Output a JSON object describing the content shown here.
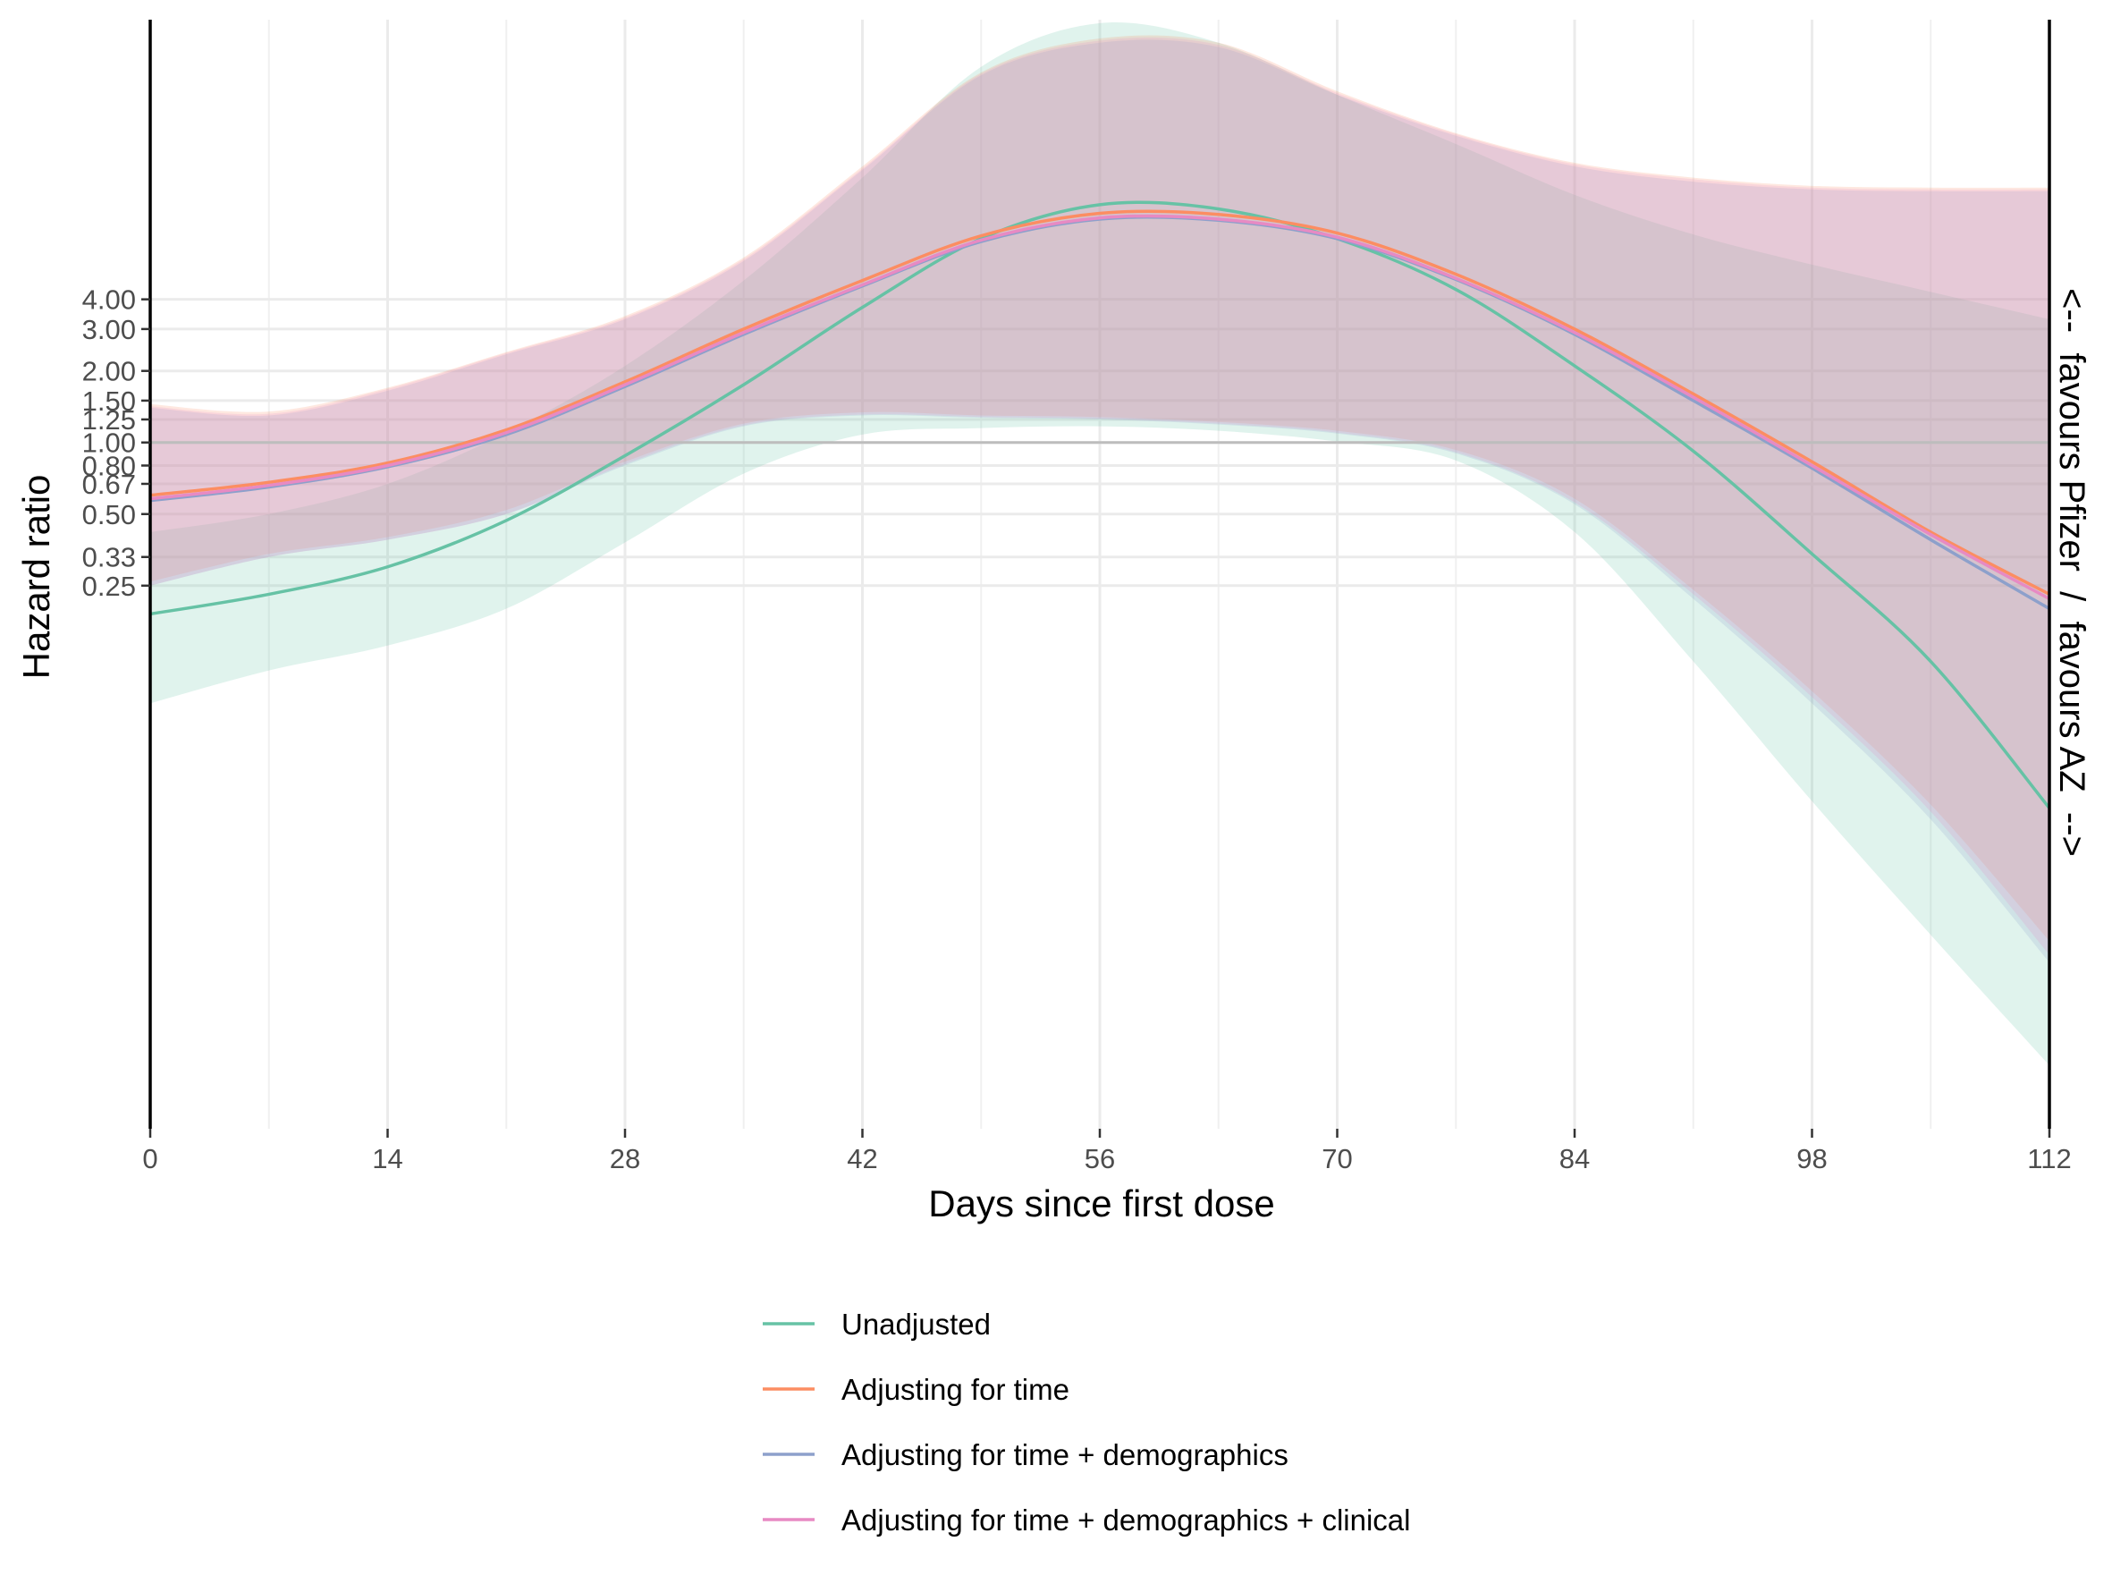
{
  "chart_data": {
    "type": "line",
    "xlabel": "Days since first dose",
    "ylabel": "Hazard ratio",
    "side_label": "<--  favours Pfizer  /  favours AZ  -->",
    "x_ticks": [
      0,
      14,
      28,
      42,
      56,
      70,
      84,
      98,
      112
    ],
    "y_ticks": [
      "0.25",
      "0.33",
      "0.50",
      "0.67",
      "0.80",
      "1.00",
      "1.25",
      "1.50",
      "2.00",
      "3.00",
      "4.00"
    ],
    "y_tick_values": [
      0.25,
      0.33,
      0.5,
      0.67,
      0.8,
      1.0,
      1.25,
      1.5,
      2.0,
      3.0,
      4.0
    ],
    "y_scale": "log",
    "xlim": [
      0,
      112
    ],
    "ylim": [
      0.0013,
      60
    ],
    "reference_line": 1.0,
    "grid": true,
    "legend_position": "bottom",
    "series": [
      {
        "name": "Unadjusted",
        "color": "#66c2a5",
        "x": [
          0,
          7,
          14,
          21,
          28,
          35,
          42,
          49,
          56,
          63,
          70,
          77,
          84,
          91,
          98,
          105,
          112
        ],
        "y": [
          0.19,
          0.23,
          0.3,
          0.47,
          0.88,
          1.75,
          3.7,
          7.2,
          10.0,
          9.6,
          7.2,
          4.4,
          2.1,
          0.92,
          0.34,
          0.12,
          0.029
        ],
        "lower": [
          0.08,
          0.11,
          0.14,
          0.2,
          0.38,
          0.74,
          1.08,
          1.15,
          1.17,
          1.12,
          1.01,
          0.84,
          0.42,
          0.12,
          0.031,
          0.0085,
          0.0024
        ],
        "upper": [
          0.42,
          0.5,
          0.67,
          1.1,
          2.1,
          4.8,
          13.0,
          38.0,
          58.0,
          48.0,
          29.0,
          18.0,
          11.0,
          7.5,
          5.6,
          4.3,
          3.3
        ]
      },
      {
        "name": "Adjusting for time",
        "color": "#fc8d62",
        "x": [
          0,
          7,
          14,
          21,
          28,
          35,
          42,
          49,
          56,
          63,
          70,
          77,
          84,
          91,
          98,
          105,
          112
        ],
        "y": [
          0.6,
          0.68,
          0.82,
          1.13,
          1.8,
          3.0,
          4.8,
          7.4,
          9.2,
          9.1,
          7.6,
          5.1,
          3.0,
          1.6,
          0.83,
          0.42,
          0.23
        ],
        "lower": [
          0.26,
          0.34,
          0.4,
          0.52,
          0.83,
          1.2,
          1.34,
          1.3,
          1.28,
          1.22,
          1.12,
          0.93,
          0.58,
          0.24,
          0.09,
          0.03,
          0.008
        ],
        "upper": [
          1.45,
          1.35,
          1.7,
          2.4,
          3.4,
          6.0,
          14.5,
          36.0,
          50.0,
          48.0,
          30.0,
          20.0,
          15.0,
          13.0,
          12.0,
          11.8,
          11.8
        ]
      },
      {
        "name": "Adjusting for time + demographics",
        "color": "#8da0cb",
        "x": [
          0,
          7,
          14,
          21,
          28,
          35,
          42,
          49,
          56,
          63,
          70,
          77,
          84,
          91,
          98,
          105,
          112
        ],
        "y": [
          0.57,
          0.65,
          0.79,
          1.08,
          1.72,
          2.85,
          4.55,
          7.0,
          8.7,
          8.6,
          7.2,
          4.85,
          2.85,
          1.5,
          0.78,
          0.39,
          0.2
        ],
        "lower": [
          0.25,
          0.33,
          0.39,
          0.5,
          0.8,
          1.17,
          1.3,
          1.27,
          1.25,
          1.19,
          1.09,
          0.9,
          0.55,
          0.22,
          0.08,
          0.026,
          0.0065
        ],
        "upper": [
          1.4,
          1.3,
          1.65,
          2.35,
          3.3,
          5.8,
          14.0,
          35.0,
          48.0,
          46.0,
          29.0,
          19.5,
          14.5,
          12.5,
          11.6,
          11.4,
          11.4
        ]
      },
      {
        "name": "Adjusting for time + demographics + clinical",
        "color": "#e78ac3",
        "x": [
          0,
          7,
          14,
          21,
          28,
          35,
          42,
          49,
          56,
          63,
          70,
          77,
          84,
          91,
          98,
          105,
          112
        ],
        "y": [
          0.58,
          0.66,
          0.8,
          1.1,
          1.75,
          2.9,
          4.6,
          7.1,
          8.8,
          8.7,
          7.3,
          4.9,
          2.9,
          1.55,
          0.8,
          0.41,
          0.22
        ],
        "lower": [
          0.25,
          0.33,
          0.39,
          0.5,
          0.81,
          1.18,
          1.31,
          1.28,
          1.26,
          1.2,
          1.1,
          0.91,
          0.56,
          0.23,
          0.085,
          0.028,
          0.007
        ],
        "upper": [
          1.42,
          1.32,
          1.68,
          2.38,
          3.35,
          5.9,
          14.2,
          35.5,
          49.0,
          47.0,
          29.5,
          19.8,
          14.8,
          12.8,
          11.8,
          11.6,
          11.6
        ]
      }
    ]
  }
}
